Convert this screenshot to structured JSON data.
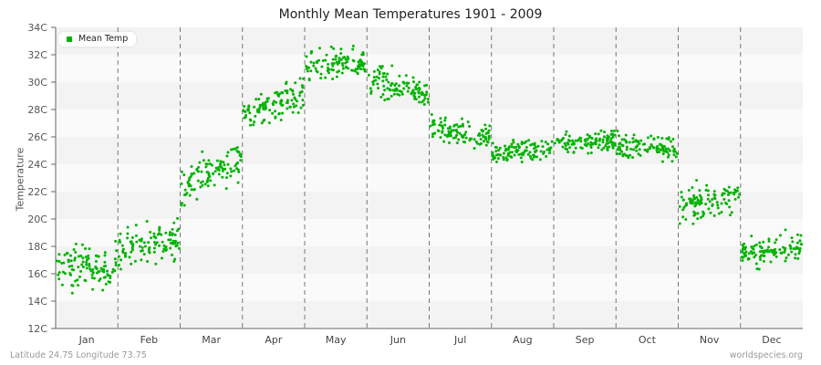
{
  "title": "Monthly Mean Temperatures 1901 - 2009",
  "footer": {
    "location": "Latitude 24.75 Longitude 73.75",
    "source": "worldspecies.org"
  },
  "chart_data": {
    "type": "scatter",
    "title": "Monthly Mean Temperatures 1901 - 2009",
    "xlabel": "",
    "ylabel": "Temperature",
    "ylim": [
      12,
      34
    ],
    "yticks": [
      "12C",
      "14C",
      "16C",
      "18C",
      "20C",
      "22C",
      "24C",
      "26C",
      "28C",
      "30C",
      "32C",
      "34C"
    ],
    "categories": [
      "Jan",
      "Feb",
      "Mar",
      "Apr",
      "May",
      "Jun",
      "Jul",
      "Aug",
      "Sep",
      "Oct",
      "Nov",
      "Dec"
    ],
    "legend": {
      "position": "top-left",
      "entries": [
        "Mean Temp"
      ]
    },
    "grid": "alternating horizontal bands, dashed vertical month separators",
    "series": [
      {
        "name": "Mean Temp",
        "color": "#00b300",
        "points_per_month": 109,
        "month_stats": [
          {
            "month": "Jan",
            "start": 16.3,
            "end": 16.6,
            "spread": 1.1,
            "min": 13.8,
            "max": 18.5
          },
          {
            "month": "Feb",
            "start": 17.8,
            "end": 18.6,
            "spread": 1.0,
            "min": 15.0,
            "max": 21.0
          },
          {
            "month": "Mar",
            "start": 22.2,
            "end": 24.6,
            "spread": 1.0,
            "min": 21.0,
            "max": 26.5
          },
          {
            "month": "Apr",
            "start": 27.6,
            "end": 29.2,
            "spread": 0.9,
            "min": 25.7,
            "max": 30.5
          },
          {
            "month": "May",
            "start": 31.0,
            "end": 31.4,
            "spread": 0.8,
            "min": 29.2,
            "max": 33.1
          },
          {
            "month": "Jun",
            "start": 30.1,
            "end": 29.3,
            "spread": 0.8,
            "min": 27.8,
            "max": 31.7
          },
          {
            "month": "Jul",
            "start": 26.6,
            "end": 26.0,
            "spread": 0.6,
            "min": 24.8,
            "max": 28.0
          },
          {
            "month": "Aug",
            "start": 24.9,
            "end": 25.1,
            "spread": 0.5,
            "min": 23.6,
            "max": 27.3
          },
          {
            "month": "Sep",
            "start": 25.5,
            "end": 25.8,
            "spread": 0.6,
            "min": 24.0,
            "max": 28.0
          },
          {
            "month": "Oct",
            "start": 25.3,
            "end": 25.2,
            "spread": 0.7,
            "min": 23.2,
            "max": 27.0
          },
          {
            "month": "Nov",
            "start": 21.0,
            "end": 21.6,
            "spread": 0.8,
            "min": 18.5,
            "max": 23.0
          },
          {
            "month": "Dec",
            "start": 17.4,
            "end": 18.0,
            "spread": 0.7,
            "min": 15.5,
            "max": 19.9
          }
        ]
      }
    ]
  }
}
